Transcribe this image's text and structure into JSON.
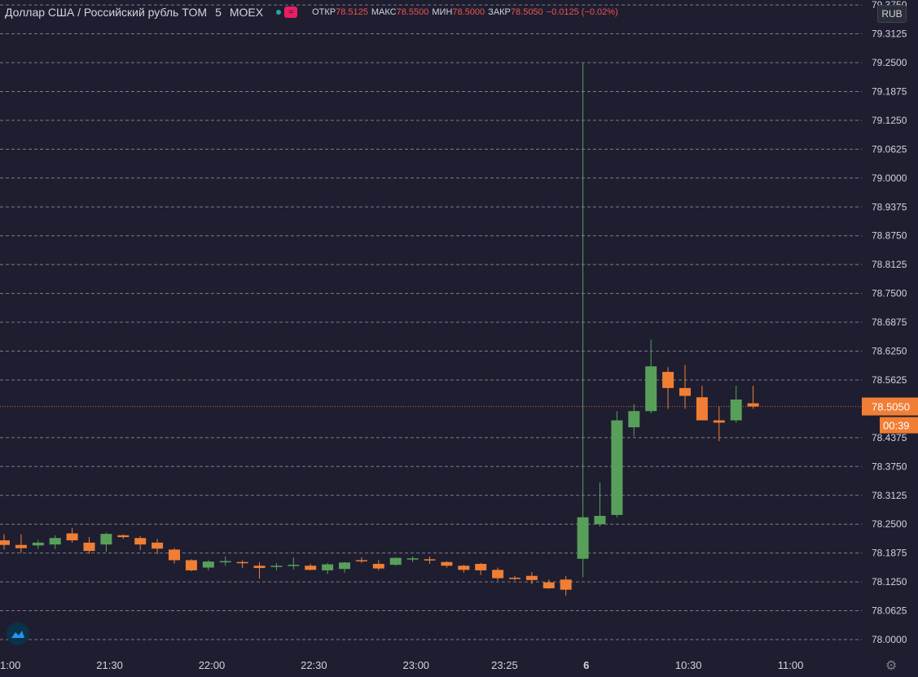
{
  "header": {
    "symbol": "Доллар США / Российский рубль TOM",
    "interval": "5",
    "exchange": "MOEX",
    "open_label": "ОТКР",
    "open_value": "78.5125",
    "high_label": "МАКС",
    "high_value": "78.5500",
    "low_label": "МИН",
    "low_value": "78.5000",
    "close_label": "ЗАКР",
    "close_value": "78.5050",
    "change": "−0.0125 (−0.02%)"
  },
  "currency_badge": "RUB",
  "icons": {
    "status": "market-status-dot-icon",
    "data": "wave-icon",
    "logo": "tradingview-cloud-icon",
    "settings": "gear-icon"
  },
  "colors": {
    "background": "#1e1e30",
    "up": "#58a05a",
    "down": "#f07e34",
    "grid": "#c8c8d0",
    "last_price": "#f07e34",
    "axis_text": "#d1d4dc"
  },
  "chart_data": {
    "type": "candlestick",
    "yunit": "RUB",
    "ylim": [
      77.96,
      79.34
    ],
    "grid": "horizontal-dashed",
    "y_ticks": [
      "79.3125",
      "79.2500",
      "79.1875",
      "79.1250",
      "79.0625",
      "79.0000",
      "78.9375",
      "78.8750",
      "78.8125",
      "78.7500",
      "78.6875",
      "78.6250",
      "78.5625",
      "78.5050",
      "78.4375",
      "78.3750",
      "78.3125",
      "78.2500",
      "78.1875",
      "78.1250",
      "78.0625",
      "78.0000"
    ],
    "y_top_partial": "79.3750",
    "last_price": "78.5050",
    "countdown": "00:39",
    "x_labels": [
      "1:00",
      "21:30",
      "22:00",
      "22:30",
      "23:00",
      "23:25",
      "6",
      "10:30",
      "11:00"
    ],
    "x_label_index": [
      0,
      6.2,
      12.2,
      18.2,
      24.2,
      29.4,
      34.2,
      40.2,
      46.2
    ],
    "ohlc": [
      [
        78.215,
        78.228,
        78.195,
        78.205
      ],
      [
        78.205,
        78.228,
        78.188,
        78.198
      ],
      [
        78.204,
        78.216,
        78.196,
        78.21
      ],
      [
        78.206,
        78.226,
        78.196,
        78.22
      ],
      [
        78.23,
        78.242,
        78.21,
        78.215
      ],
      [
        78.21,
        78.222,
        78.186,
        78.192
      ],
      [
        78.206,
        78.232,
        78.19,
        78.229
      ],
      [
        78.226,
        78.228,
        78.218,
        78.222
      ],
      [
        78.22,
        78.224,
        78.194,
        78.206
      ],
      [
        78.21,
        78.218,
        78.185,
        78.197
      ],
      [
        78.195,
        78.198,
        78.165,
        78.172
      ],
      [
        78.172,
        78.174,
        78.148,
        78.15
      ],
      [
        78.156,
        78.172,
        78.15,
        78.169
      ],
      [
        78.168,
        78.18,
        78.16,
        78.17
      ],
      [
        78.168,
        78.172,
        78.155,
        78.166
      ],
      [
        78.16,
        78.168,
        78.132,
        78.155
      ],
      [
        78.158,
        78.166,
        78.15,
        78.16
      ],
      [
        78.16,
        78.178,
        78.152,
        78.162
      ],
      [
        78.16,
        78.164,
        78.15,
        78.151
      ],
      [
        78.15,
        78.166,
        78.142,
        78.163
      ],
      [
        78.153,
        78.168,
        78.145,
        78.167
      ],
      [
        78.172,
        78.178,
        78.166,
        78.17
      ],
      [
        78.164,
        78.172,
        78.15,
        78.154
      ],
      [
        78.162,
        78.178,
        78.16,
        78.177
      ],
      [
        78.175,
        78.18,
        78.168,
        78.176
      ],
      [
        78.174,
        78.18,
        78.164,
        78.172
      ],
      [
        78.168,
        78.17,
        78.156,
        78.16
      ],
      [
        78.16,
        78.162,
        78.145,
        78.151
      ],
      [
        78.164,
        78.166,
        78.14,
        78.15
      ],
      [
        78.151,
        78.156,
        78.128,
        78.133
      ],
      [
        78.134,
        78.138,
        78.128,
        78.133
      ],
      [
        78.138,
        78.146,
        78.12,
        78.129
      ],
      [
        78.124,
        78.13,
        78.11,
        78.111
      ],
      [
        78.13,
        78.138,
        78.095,
        78.108
      ],
      [
        78.175,
        79.25,
        78.135,
        78.265
      ],
      [
        78.25,
        78.34,
        78.245,
        78.268
      ],
      [
        78.27,
        78.495,
        78.265,
        78.475
      ],
      [
        78.46,
        78.51,
        78.44,
        78.495
      ],
      [
        78.495,
        78.65,
        78.49,
        78.592
      ],
      [
        78.58,
        78.59,
        78.5,
        78.545
      ],
      [
        78.545,
        78.595,
        78.5,
        78.528
      ],
      [
        78.525,
        78.55,
        78.475,
        78.475
      ],
      [
        78.475,
        78.505,
        78.43,
        78.47
      ],
      [
        78.475,
        78.55,
        78.47,
        78.52
      ],
      [
        78.512,
        78.55,
        78.5,
        78.505
      ]
    ]
  }
}
